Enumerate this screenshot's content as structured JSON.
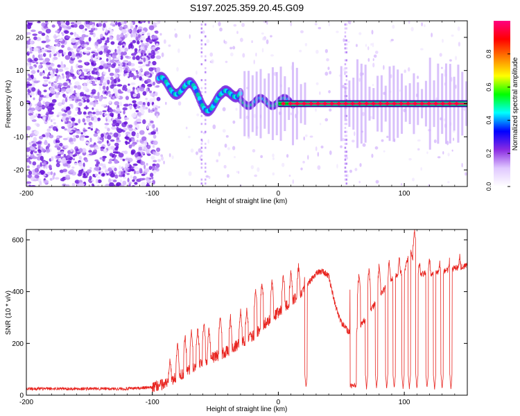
{
  "title": "S197.2025.359.20.45.G09",
  "chart_data": [
    {
      "type": "heatmap",
      "xlabel": "Height of straight line (km)",
      "ylabel": "Frequency (Hz)",
      "xlim": [
        -200,
        150
      ],
      "ylim": [
        -25,
        25
      ],
      "xticks": [
        -200,
        -100,
        0,
        100
      ],
      "yticks": [
        -20,
        -10,
        0,
        10,
        20
      ],
      "xtick_labels": [
        "-200",
        "-100",
        "0",
        "100"
      ],
      "ytick_labels": [
        "-20",
        "-10",
        "0",
        "10",
        "20"
      ],
      "ridge_frequency": 0,
      "colorbar": {
        "label": "Normalized spectral amplitude",
        "range": [
          0,
          1
        ],
        "ticks": [
          0.0,
          0.2,
          0.4,
          0.6,
          0.8
        ],
        "tick_labels": [
          "0.0",
          "0.2",
          "0.4",
          "0.6",
          "0.8"
        ],
        "colors": [
          "#ffffff",
          "#e0c8ff",
          "#8a2be2",
          "#0000ff",
          "#00ffff",
          "#00ff00",
          "#ffff00",
          "#ff8000",
          "#ff0000",
          "#ff0080"
        ]
      }
    },
    {
      "type": "line",
      "xlabel": "Height of straight line (km)",
      "ylabel": "SNR (10 * v/v)",
      "xlim": [
        -200,
        150
      ],
      "ylim": [
        0,
        640
      ],
      "xticks": [
        -200,
        -100,
        0,
        100
      ],
      "yticks": [
        0,
        200,
        400,
        600
      ],
      "xtick_labels": [
        "-200",
        "-100",
        "0",
        "100"
      ],
      "ytick_labels": [
        "0",
        "200",
        "400",
        "600"
      ],
      "color": "#e8231e",
      "envelope": {
        "x": [
          -200,
          -160,
          -120,
          -100,
          -90,
          -80,
          -70,
          -60,
          -50,
          -40,
          -30,
          -20,
          -10,
          0,
          10,
          20,
          25,
          30,
          35,
          40,
          45,
          50,
          55,
          60,
          70,
          80,
          90,
          100,
          105,
          110,
          120,
          130,
          140,
          150
        ],
        "values": [
          25,
          25,
          25,
          30,
          45,
          70,
          100,
          130,
          150,
          170,
          200,
          230,
          280,
          320,
          360,
          400,
          440,
          470,
          480,
          460,
          350,
          280,
          250,
          230,
          300,
          380,
          450,
          480,
          560,
          470,
          470,
          480,
          490,
          500
        ]
      },
      "spikes": [
        {
          "x": -86,
          "peak": 150
        },
        {
          "x": -80,
          "peak": 200
        },
        {
          "x": -74,
          "peak": 230
        },
        {
          "x": -69,
          "peak": 250
        },
        {
          "x": -64,
          "peak": 260
        },
        {
          "x": -59,
          "peak": 280
        },
        {
          "x": -55,
          "peak": 260
        },
        {
          "x": -46,
          "peak": 310
        },
        {
          "x": -38,
          "peak": 300
        },
        {
          "x": -30,
          "peak": 330
        },
        {
          "x": -25,
          "peak": 340
        },
        {
          "x": -18,
          "peak": 410
        },
        {
          "x": -13,
          "peak": 440
        },
        {
          "x": -5,
          "peak": 450
        },
        {
          "x": 4,
          "peak": 470
        },
        {
          "x": 10,
          "peak": 480
        },
        {
          "x": 16,
          "peak": 500
        },
        {
          "x": 21,
          "peak": 450
        },
        {
          "x": 58,
          "peak": 480
        },
        {
          "x": 64,
          "peak": 470
        },
        {
          "x": 72,
          "peak": 490
        },
        {
          "x": 80,
          "peak": 500
        },
        {
          "x": 88,
          "peak": 520
        },
        {
          "x": 96,
          "peak": 530
        },
        {
          "x": 104,
          "peak": 560
        },
        {
          "x": 108,
          "peak": 640
        },
        {
          "x": 112,
          "peak": 520
        },
        {
          "x": 120,
          "peak": 530
        },
        {
          "x": 128,
          "peak": 520
        },
        {
          "x": 136,
          "peak": 530
        },
        {
          "x": 144,
          "peak": 540
        }
      ],
      "dips": [
        22,
        58,
        61,
        70,
        78,
        86,
        92,
        99,
        104,
        110,
        118,
        124,
        130,
        137
      ]
    }
  ]
}
